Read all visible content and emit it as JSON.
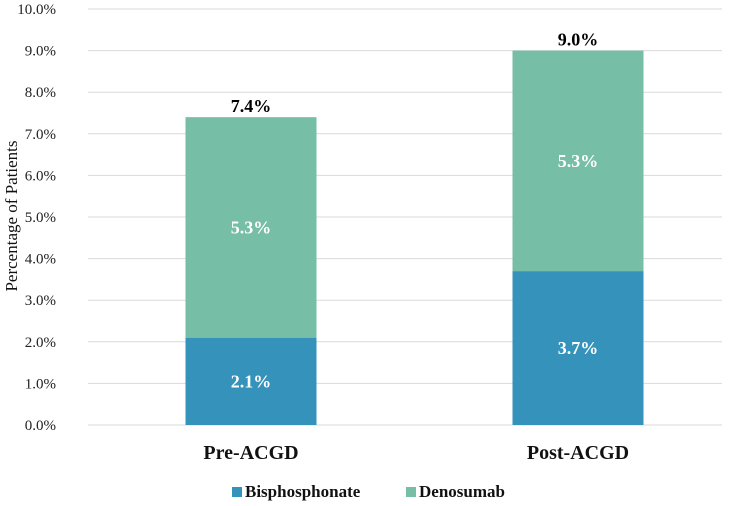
{
  "chart_data": {
    "type": "bar",
    "stacked": true,
    "categories": [
      "Pre-ACGD",
      "Post-ACGD"
    ],
    "series": [
      {
        "name": "Bisphosphonate",
        "values": [
          2.1,
          3.7
        ],
        "labels": [
          "2.1%",
          "3.7%"
        ],
        "color": "#3593bb"
      },
      {
        "name": "Denosumab",
        "values": [
          5.3,
          5.3
        ],
        "labels": [
          "5.3%",
          "5.3%"
        ],
        "color": "#77bea6"
      }
    ],
    "totals": [
      7.4,
      9.0
    ],
    "total_labels": [
      "7.4%",
      "9.0%"
    ],
    "ylabel": "Percentage of Patients",
    "ylim": [
      0,
      10
    ],
    "yticks": [
      "0.0%",
      "1.0%",
      "2.0%",
      "3.0%",
      "4.0%",
      "5.0%",
      "6.0%",
      "7.0%",
      "8.0%",
      "9.0%",
      "10.0%"
    ],
    "grid": true,
    "legend": "bottom"
  }
}
